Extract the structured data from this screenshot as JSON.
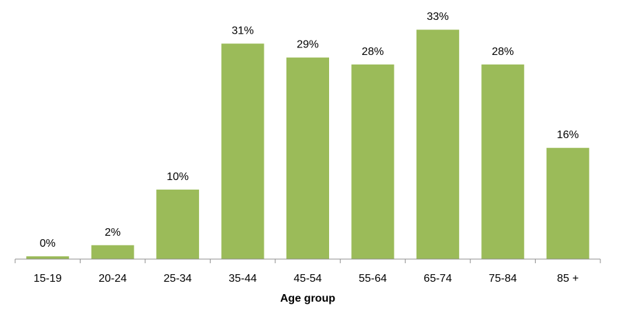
{
  "chart_data": {
    "type": "bar",
    "title": "",
    "xlabel": "Age group",
    "ylabel": "",
    "categories": [
      "15-19",
      "20-24",
      "25-34",
      "35-44",
      "45-54",
      "55-64",
      "65-74",
      "75-84",
      "85 +"
    ],
    "values": [
      0.4,
      2,
      10,
      31,
      29,
      28,
      33,
      28,
      16
    ],
    "data_labels": [
      "0%",
      "2%",
      "10%",
      "31%",
      "29%",
      "28%",
      "33%",
      "28%",
      "16%"
    ],
    "unit": "%",
    "ylim": [
      0,
      35
    ],
    "grid": false,
    "legend": "none",
    "bar_color": "#9BBB59"
  }
}
